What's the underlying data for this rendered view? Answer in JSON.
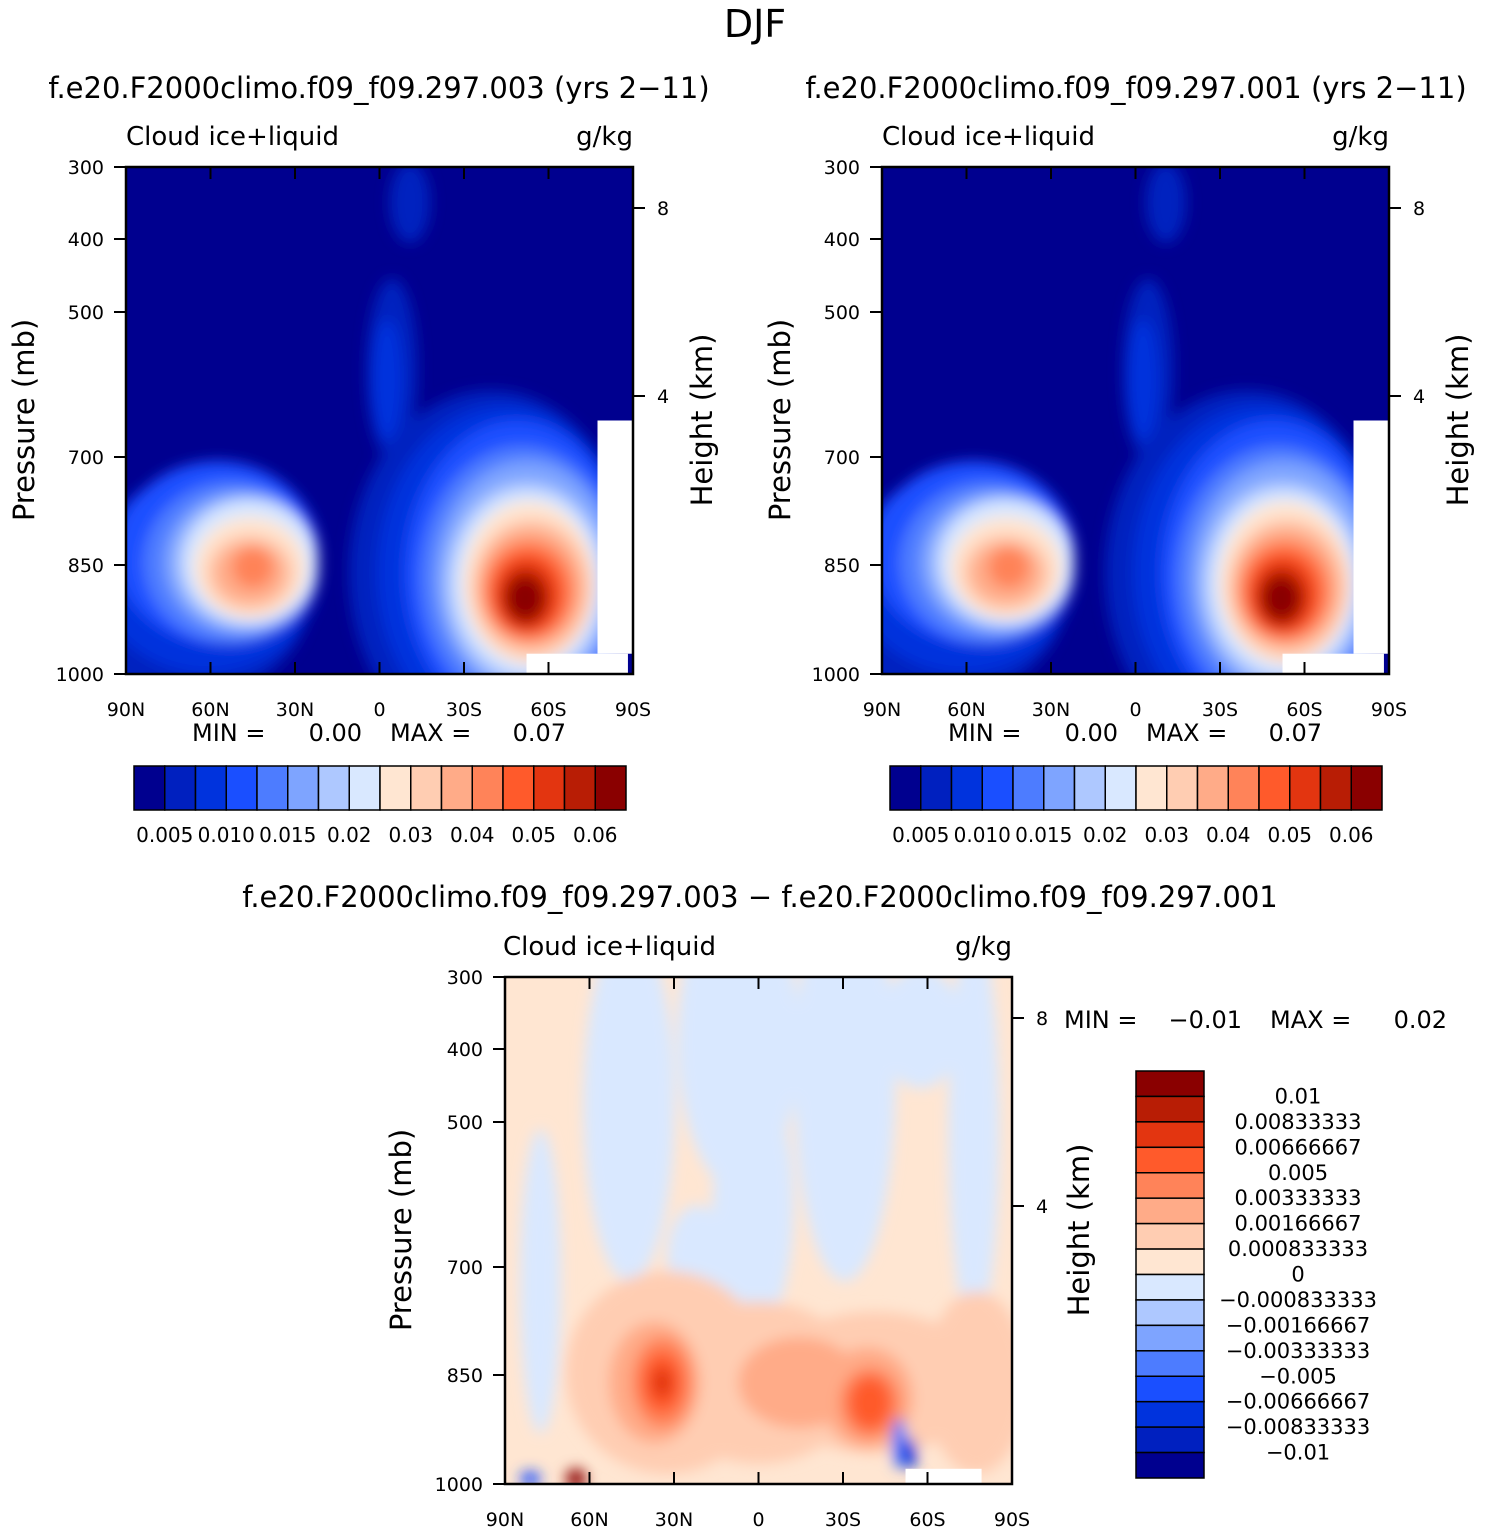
{
  "figure": {
    "title": "DJF",
    "diff_title": "f.e20.F2000climo.f09_f09.297.003 − f.e20.F2000climo.f09_f09.297.001"
  },
  "chart_data": [
    {
      "type": "heatmap",
      "panel": "left",
      "title": "f.e20.F2000climo.f09_f09.297.003 (yrs 2−11)",
      "variable": "Cloud ice+liquid",
      "units": "g/kg",
      "ylabel": "Pressure (mb)",
      "y2label": "Height (km)",
      "x_ticks": [
        "90N",
        "60N",
        "30N",
        "0",
        "30S",
        "60S",
        "90S"
      ],
      "y_ticks": [
        "300",
        "400",
        "500",
        "700",
        "850",
        "1000"
      ],
      "y2_ticks": [
        "8",
        "4"
      ],
      "ylim": [
        1000,
        300
      ],
      "stats": {
        "min_label": "MIN =",
        "min": "0.00",
        "max_label": "MAX =",
        "max": "0.07"
      },
      "levels": [
        "0.005",
        "0.010",
        "0.015",
        "0.02",
        "0.03",
        "0.04",
        "0.05",
        "0.06"
      ],
      "colors": [
        "#00008f",
        "#0020bf",
        "#0033dd",
        "#1a4fff",
        "#4d7cff",
        "#7ea4ff",
        "#aec8ff",
        "#d9e8ff",
        "#ffe6d2",
        "#ffcdb2",
        "#ffab88",
        "#ff8359",
        "#ff5a2b",
        "#e33510",
        "#b81d05",
        "#8a0000"
      ],
      "features": [
        {
          "name": "NH midlatitude low cloud",
          "lat": 50,
          "pressure": 850,
          "peak": 0.036
        },
        {
          "name": "SH midlatitude low cloud",
          "lat": -52,
          "pressure": 900,
          "peak": 0.07
        },
        {
          "name": "tropical upper cloud",
          "lat": 0,
          "pressure": 560,
          "peak": 0.012
        }
      ]
    },
    {
      "type": "heatmap",
      "panel": "right",
      "title": "f.e20.F2000climo.f09_f09.297.001 (yrs 2−11)",
      "variable": "Cloud ice+liquid",
      "units": "g/kg",
      "ylabel": "Pressure (mb)",
      "y2label": "Height (km)",
      "x_ticks": [
        "90N",
        "60N",
        "30N",
        "0",
        "30S",
        "60S",
        "90S"
      ],
      "y_ticks": [
        "300",
        "400",
        "500",
        "700",
        "850",
        "1000"
      ],
      "y2_ticks": [
        "8",
        "4"
      ],
      "ylim": [
        1000,
        300
      ],
      "stats": {
        "min_label": "MIN =",
        "min": "0.00",
        "max_label": "MAX =",
        "max": "0.07"
      },
      "levels": [
        "0.005",
        "0.010",
        "0.015",
        "0.02",
        "0.03",
        "0.04",
        "0.05",
        "0.06"
      ],
      "colors": [
        "#00008f",
        "#0020bf",
        "#0033dd",
        "#1a4fff",
        "#4d7cff",
        "#7ea4ff",
        "#aec8ff",
        "#d9e8ff",
        "#ffe6d2",
        "#ffcdb2",
        "#ffab88",
        "#ff8359",
        "#ff5a2b",
        "#e33510",
        "#b81d05",
        "#8a0000"
      ],
      "features": [
        {
          "name": "NH midlatitude low cloud",
          "lat": 50,
          "pressure": 850,
          "peak": 0.034
        },
        {
          "name": "SH midlatitude low cloud",
          "lat": -52,
          "pressure": 900,
          "peak": 0.07
        },
        {
          "name": "tropical upper cloud",
          "lat": 0,
          "pressure": 560,
          "peak": 0.012
        }
      ]
    },
    {
      "type": "heatmap",
      "panel": "diff",
      "variable": "Cloud ice+liquid",
      "units": "g/kg",
      "ylabel": "Pressure (mb)",
      "y2label": "Height (km)",
      "x_ticks": [
        "90N",
        "60N",
        "30N",
        "0",
        "30S",
        "60S",
        "90S"
      ],
      "y_ticks": [
        "300",
        "400",
        "500",
        "700",
        "850",
        "1000"
      ],
      "y2_ticks": [
        "8",
        "4"
      ],
      "ylim": [
        1000,
        300
      ],
      "stats": {
        "min_label": "MIN =",
        "min": "−0.01",
        "max_label": "MAX =",
        "max": "0.02"
      },
      "levels": [
        "0.01",
        "0.00833333",
        "0.00666667",
        "0.005",
        "0.00333333",
        "0.00166667",
        "0.000833333",
        "0",
        "−0.000833333",
        "−0.00166667",
        "−0.00333333",
        "−0.005",
        "−0.00666667",
        "−0.00833333",
        "−0.01"
      ],
      "colors": [
        "#8a0000",
        "#b81d05",
        "#e33510",
        "#ff5a2b",
        "#ff8359",
        "#ffab88",
        "#ffcdb2",
        "#ffe6d2",
        "#d9e8ff",
        "#aec8ff",
        "#7ea4ff",
        "#4d7cff",
        "#1a4fff",
        "#0033dd",
        "#0020bf",
        "#00008f"
      ],
      "features": [
        {
          "name": "NH positive anomaly",
          "lat": 36,
          "pressure": 860,
          "peak": 0.006
        },
        {
          "name": "SH positive anomaly",
          "lat": -38,
          "pressure": 870,
          "peak": 0.006
        },
        {
          "name": "small maximum near 1000 mb",
          "lat": 63,
          "pressure": 995,
          "peak": 0.02
        }
      ]
    }
  ]
}
